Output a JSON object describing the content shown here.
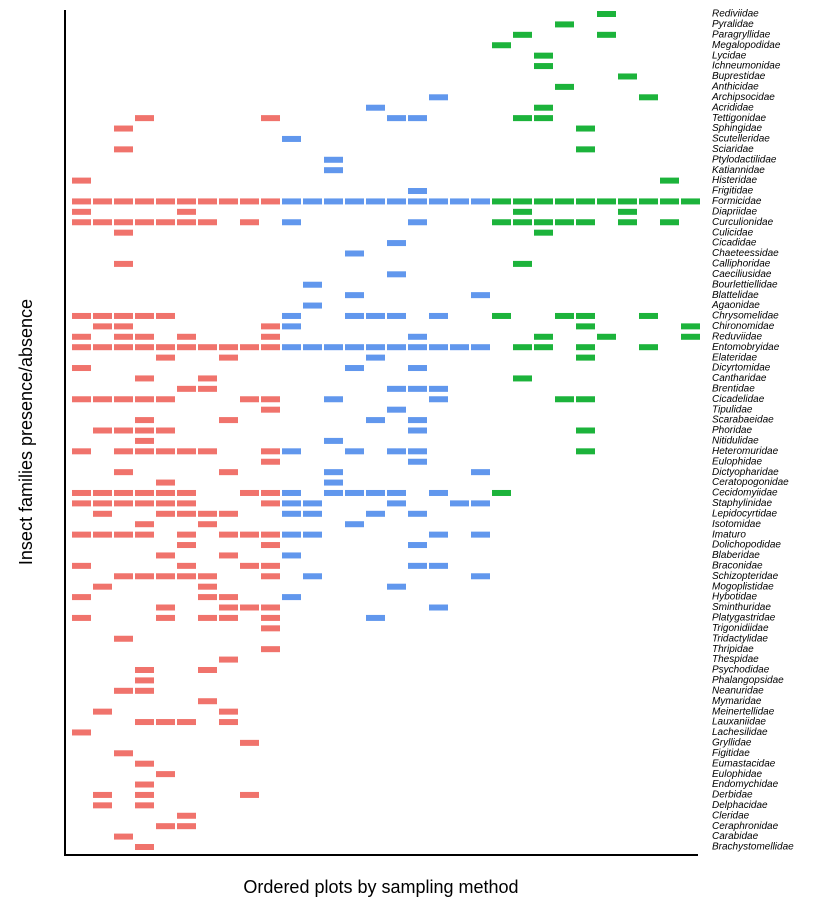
{
  "chart_data": {
    "type": "heatmap",
    "x_label": "Ordered plots by sampling method",
    "y_label": "Insect families presence/absence",
    "methods": [
      {
        "color": "#f0736c",
        "plots": 10
      },
      {
        "color": "#6197ed",
        "plots": 10
      },
      {
        "color": "#1cb33b",
        "plots": 10
      }
    ],
    "rows": [
      {
        "name": "Rediviidae",
        "present": [
          25
        ]
      },
      {
        "name": "Pyralidae",
        "present": [
          23
        ]
      },
      {
        "name": "Paragryllidae",
        "present": [
          21,
          25
        ]
      },
      {
        "name": "Megalopodidae",
        "present": [
          20
        ]
      },
      {
        "name": "Lycidae",
        "present": [
          22
        ]
      },
      {
        "name": "Ichneumonidae",
        "present": [
          22
        ]
      },
      {
        "name": "Buprestidae",
        "present": [
          26
        ]
      },
      {
        "name": "Anthicidae",
        "present": [
          23
        ]
      },
      {
        "name": "Archipsocidae",
        "present": [
          17,
          27
        ]
      },
      {
        "name": "Acrididae",
        "present": [
          14,
          22
        ]
      },
      {
        "name": "Tettigonidae",
        "present": [
          3,
          9,
          15,
          16,
          21,
          22
        ]
      },
      {
        "name": "Sphingidae",
        "present": [
          2,
          24
        ]
      },
      {
        "name": "Scutelleridae",
        "present": [
          10
        ]
      },
      {
        "name": "Sciaridae",
        "present": [
          2,
          24
        ]
      },
      {
        "name": "Ptylodactilidae",
        "present": [
          12
        ]
      },
      {
        "name": "Katiannidae",
        "present": [
          12
        ]
      },
      {
        "name": "Histeridae",
        "present": [
          0,
          28
        ]
      },
      {
        "name": "Frigitidae",
        "present": [
          16
        ]
      },
      {
        "name": "Formicidae",
        "present": [
          0,
          1,
          2,
          3,
          4,
          5,
          6,
          7,
          8,
          9,
          10,
          11,
          12,
          13,
          14,
          15,
          16,
          17,
          18,
          19,
          20,
          21,
          22,
          23,
          24,
          25,
          26,
          27,
          28,
          29
        ]
      },
      {
        "name": "Diapriidae",
        "present": [
          0,
          5,
          21,
          26
        ]
      },
      {
        "name": "Curculionidae",
        "present": [
          0,
          1,
          2,
          3,
          4,
          5,
          6,
          8,
          10,
          16,
          20,
          21,
          22,
          23,
          24,
          26,
          28
        ]
      },
      {
        "name": "Culicidae",
        "present": [
          2,
          22
        ]
      },
      {
        "name": "Cicadidae",
        "present": [
          15
        ]
      },
      {
        "name": "Chaeteessidae",
        "present": [
          13
        ]
      },
      {
        "name": "Calliphoridae",
        "present": [
          2,
          21
        ]
      },
      {
        "name": "Caeciliusidae",
        "present": [
          15
        ]
      },
      {
        "name": "Bourlettiellidae",
        "present": [
          11
        ]
      },
      {
        "name": "Blattelidae",
        "present": [
          13,
          19
        ]
      },
      {
        "name": "Agaonidae",
        "present": [
          11
        ]
      },
      {
        "name": "Chrysomelidae",
        "present": [
          0,
          1,
          2,
          3,
          4,
          10,
          13,
          14,
          15,
          17,
          20,
          23,
          24,
          27
        ]
      },
      {
        "name": "Chironomidae",
        "present": [
          1,
          2,
          9,
          10,
          24,
          29
        ]
      },
      {
        "name": "Reduviidae",
        "present": [
          0,
          2,
          3,
          5,
          9,
          16,
          22,
          25,
          29
        ]
      },
      {
        "name": "Entomobryidae",
        "present": [
          0,
          1,
          2,
          3,
          4,
          5,
          6,
          7,
          8,
          9,
          10,
          11,
          12,
          13,
          14,
          15,
          16,
          17,
          18,
          19,
          21,
          22,
          24,
          27
        ]
      },
      {
        "name": "Elateridae",
        "present": [
          4,
          7,
          14,
          24
        ]
      },
      {
        "name": "Dicyrtomidae",
        "present": [
          0,
          13,
          16
        ]
      },
      {
        "name": "Cantharidae",
        "present": [
          3,
          6,
          21
        ]
      },
      {
        "name": "Brentidae",
        "present": [
          5,
          6,
          15,
          16,
          17
        ]
      },
      {
        "name": "Cicadelidae",
        "present": [
          0,
          1,
          2,
          3,
          4,
          8,
          9,
          12,
          17,
          23,
          24
        ]
      },
      {
        "name": "Tipulidae",
        "present": [
          9,
          15
        ]
      },
      {
        "name": "Scarabaeidae",
        "present": [
          3,
          7,
          14,
          16
        ]
      },
      {
        "name": "Phoridae",
        "present": [
          1,
          2,
          3,
          4,
          16,
          24
        ]
      },
      {
        "name": "Nitidulidae",
        "present": [
          3,
          12
        ]
      },
      {
        "name": "Heteromuridae",
        "present": [
          0,
          2,
          3,
          4,
          5,
          6,
          9,
          10,
          13,
          15,
          16,
          24
        ]
      },
      {
        "name": "Eulophidae",
        "present": [
          9,
          16
        ]
      },
      {
        "name": "Dictyopharidae",
        "present": [
          2,
          7,
          12,
          19
        ]
      },
      {
        "name": "Ceratopogonidae",
        "present": [
          4,
          12
        ]
      },
      {
        "name": "Cecidomyiidae",
        "present": [
          0,
          1,
          2,
          3,
          4,
          5,
          8,
          9,
          10,
          12,
          13,
          14,
          15,
          17,
          20
        ]
      },
      {
        "name": "Staphylinidae",
        "present": [
          0,
          1,
          2,
          3,
          4,
          5,
          9,
          10,
          11,
          15,
          18,
          19
        ]
      },
      {
        "name": "Lepidocyrtidae",
        "present": [
          1,
          4,
          5,
          6,
          7,
          10,
          11,
          14,
          16
        ]
      },
      {
        "name": "Isotomidae",
        "present": [
          3,
          6,
          13
        ]
      },
      {
        "name": "Imaturo",
        "present": [
          0,
          1,
          2,
          3,
          5,
          7,
          8,
          9,
          10,
          11,
          17,
          19
        ]
      },
      {
        "name": "Dolichopodidae",
        "present": [
          5,
          9,
          16
        ]
      },
      {
        "name": "Blaberidae",
        "present": [
          4,
          7,
          10
        ]
      },
      {
        "name": "Braconidae",
        "present": [
          0,
          5,
          8,
          9,
          16,
          17
        ]
      },
      {
        "name": "Schizopteridae",
        "present": [
          2,
          3,
          4,
          5,
          6,
          9,
          11,
          19
        ]
      },
      {
        "name": "Mogoplistidae",
        "present": [
          1,
          6,
          15
        ]
      },
      {
        "name": "Hybotidae",
        "present": [
          0,
          6,
          7,
          10
        ]
      },
      {
        "name": "Sminthuridae",
        "present": [
          4,
          7,
          8,
          9,
          17
        ]
      },
      {
        "name": "Platygastridae",
        "present": [
          0,
          4,
          6,
          7,
          9,
          14
        ]
      },
      {
        "name": "Trigonidiidae",
        "present": [
          9
        ]
      },
      {
        "name": "Tridactylidae",
        "present": [
          2
        ]
      },
      {
        "name": "Thripidae",
        "present": [
          9
        ]
      },
      {
        "name": "Thespidae",
        "present": [
          7
        ]
      },
      {
        "name": "Psychodidae",
        "present": [
          3,
          6
        ]
      },
      {
        "name": "Phalangopsidae",
        "present": [
          3
        ]
      },
      {
        "name": "Neanuridae",
        "present": [
          2,
          3
        ]
      },
      {
        "name": "Mymaridae",
        "present": [
          6
        ]
      },
      {
        "name": "Meinertellidae",
        "present": [
          1,
          7
        ]
      },
      {
        "name": "Lauxaniidae",
        "present": [
          3,
          4,
          5,
          7
        ]
      },
      {
        "name": "Lachesilidae",
        "present": [
          0
        ]
      },
      {
        "name": "Gryllidae",
        "present": [
          8
        ]
      },
      {
        "name": "Figitidae",
        "present": [
          2
        ]
      },
      {
        "name": "Eumastacidae",
        "present": [
          3
        ]
      },
      {
        "name": "Eulophidae",
        "present": [
          4
        ]
      },
      {
        "name": "Endomychidae",
        "present": [
          3
        ]
      },
      {
        "name": "Derbidae",
        "present": [
          1,
          3,
          8
        ]
      },
      {
        "name": "Delphacidae",
        "present": [
          1,
          3
        ]
      },
      {
        "name": "Cleridae",
        "present": [
          5
        ]
      },
      {
        "name": "Ceraphronidae",
        "present": [
          4,
          5
        ]
      },
      {
        "name": "Carabidae",
        "present": [
          2
        ]
      },
      {
        "name": "Brachystomellidae",
        "present": [
          3
        ]
      }
    ]
  }
}
